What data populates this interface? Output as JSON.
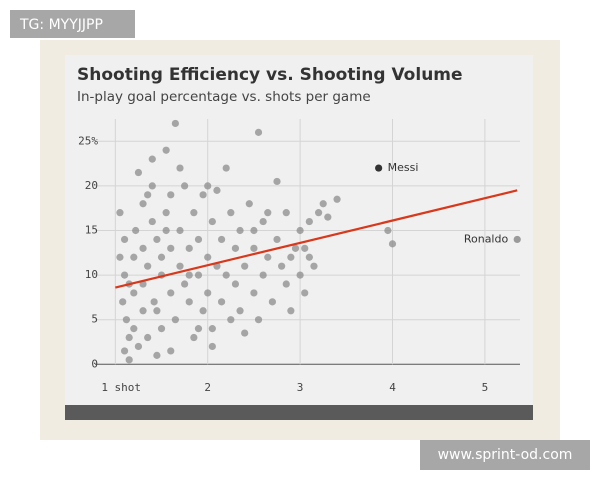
{
  "watermarks": [
    "TG: MYYJJPP",
    "www.sprint-od.com"
  ],
  "chart_data": {
    "type": "scatter",
    "title": "Shooting Efficiency vs. Shooting Volume",
    "subtitle": "In-play goal percentage vs. shots per game",
    "xlim": [
      0.78,
      5.38
    ],
    "ylim": [
      -1.2,
      27.5
    ],
    "xticks": [
      {
        "value": 1,
        "label": "1 shot"
      },
      2,
      3,
      4,
      5
    ],
    "yticks": [
      0,
      5,
      10,
      15,
      20,
      {
        "value": 25,
        "label": "25%"
      }
    ],
    "grid": true,
    "color": "#8c8c8c",
    "x": [
      1.05,
      1.1,
      1.1,
      1.08,
      1.12,
      1.15,
      1.1,
      1.15,
      1.2,
      1.2,
      1.22,
      1.25,
      1.3,
      1.3,
      1.3,
      1.3,
      1.35,
      1.35,
      1.4,
      1.4,
      1.42,
      1.45,
      1.5,
      1.5,
      1.5,
      1.55,
      1.55,
      1.6,
      1.6,
      1.6,
      1.65,
      1.65,
      1.7,
      1.7,
      1.75,
      1.75,
      1.8,
      1.8,
      1.85,
      1.85,
      1.9,
      1.9,
      1.95,
      1.95,
      2.0,
      2.0,
      2.05,
      2.05,
      2.1,
      2.1,
      2.15,
      2.15,
      2.2,
      2.2,
      2.25,
      2.25,
      2.3,
      2.3,
      2.35,
      2.4,
      2.4,
      2.45,
      2.5,
      2.5,
      2.55,
      2.55,
      2.6,
      2.6,
      2.65,
      2.7,
      2.75,
      2.75,
      2.8,
      2.85,
      2.85,
      2.9,
      2.95,
      3.0,
      3.0,
      3.05,
      3.1,
      3.1,
      3.15,
      3.2,
      3.25,
      3.3,
      3.4,
      3.95,
      4.0,
      1.25,
      1.45,
      1.35,
      1.7,
      1.9,
      2.05,
      1.15,
      1.45,
      1.55,
      2.35,
      2.65,
      1.2,
      1.6,
      1.8,
      2.0,
      2.5,
      2.9,
      3.05,
      1.05,
      1.4
    ],
    "values": [
      17,
      14,
      10,
      7,
      5,
      3,
      1.5,
      0.5,
      12,
      8,
      15,
      21.5,
      18,
      13,
      9,
      6,
      3,
      11,
      16,
      20,
      7,
      14,
      10,
      4,
      12,
      17,
      24,
      8,
      19,
      13,
      27,
      5,
      11,
      15,
      9,
      20,
      7,
      13,
      17,
      3,
      10,
      14,
      19,
      6,
      12,
      8,
      16,
      4,
      11,
      19.5,
      14,
      7,
      10,
      22,
      17,
      5,
      13,
      9,
      15,
      11,
      3.5,
      18,
      8,
      13,
      26,
      5,
      16,
      10,
      12,
      7,
      20.5,
      14,
      11,
      9,
      17,
      6,
      13,
      15,
      10,
      8,
      16,
      12,
      11,
      17,
      18,
      16.5,
      18.5,
      15,
      13.5,
      2,
      1,
      19,
      22,
      4,
      2,
      9,
      6,
      15,
      6,
      17,
      4,
      1.5,
      10,
      20,
      15,
      12,
      13,
      12,
      23
    ],
    "annotations": [
      {
        "label": "Messi",
        "x": 3.85,
        "y": 22,
        "color": "#333333",
        "label_side": "right"
      },
      {
        "label": "Ronaldo",
        "x": 5.35,
        "y": 14,
        "color": "#9a9a9a",
        "label_side": "left"
      }
    ],
    "trend_line": {
      "x": [
        1,
        5.35
      ],
      "values": [
        8.6,
        19.5
      ],
      "color": "#d8381c"
    }
  }
}
